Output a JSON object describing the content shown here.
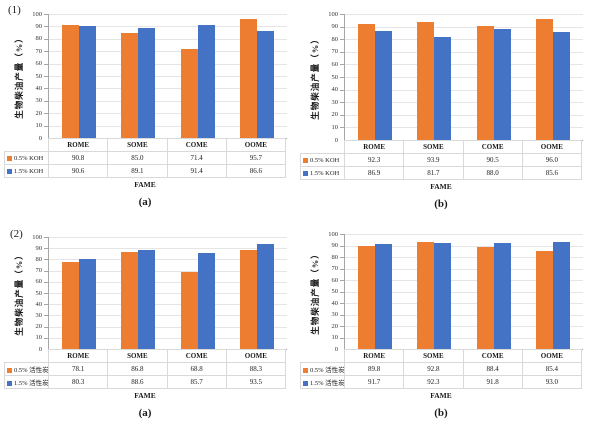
{
  "figure": {
    "colors": {
      "orange": "#ED7D31",
      "blue": "#4472C4",
      "gridline": "#E5E5E5",
      "axis": "#A6A6A6",
      "table_border": "#D9D9D9",
      "text": "#1a1a1a"
    }
  },
  "chart_data": [
    {
      "type": "bar",
      "panel_label": "(1)",
      "caption": "(a)",
      "ylabel": "生物柴油产量（%）",
      "xlabel": "FAME",
      "ylim": [
        0,
        100
      ],
      "ytick_step": 10,
      "grid": true,
      "legend_position": "table-left",
      "categories": [
        "ROME",
        "SOME",
        "COME",
        "OOME"
      ],
      "series": [
        {
          "name": "0.5% KOH",
          "color": "#ED7D31",
          "values": [
            90.8,
            85.0,
            71.4,
            95.7
          ]
        },
        {
          "name": "1.5% KOH",
          "color": "#4472C4",
          "values": [
            90.6,
            89.1,
            91.4,
            86.6
          ]
        }
      ]
    },
    {
      "type": "bar",
      "panel_label": "",
      "caption": "(b)",
      "ylabel": "生物柴油产量（%）",
      "xlabel": "FAME",
      "ylim": [
        0,
        100
      ],
      "ytick_step": 10,
      "grid": true,
      "legend_position": "table-left",
      "categories": [
        "ROME",
        "SOME",
        "COME",
        "OOME"
      ],
      "series": [
        {
          "name": "0.5% KOH",
          "color": "#ED7D31",
          "values": [
            92.3,
            93.9,
            90.5,
            96.0
          ]
        },
        {
          "name": "1.5% KOH",
          "color": "#4472C4",
          "values": [
            86.9,
            81.7,
            88.0,
            85.6
          ]
        }
      ]
    },
    {
      "type": "bar",
      "panel_label": "(2)",
      "caption": "(a)",
      "ylabel": "生物柴油产量（%）",
      "xlabel": "FAME",
      "ylim": [
        0,
        100
      ],
      "ytick_step": 10,
      "grid": true,
      "legend_position": "table-left",
      "categories": [
        "ROME",
        "SOME",
        "COME",
        "OOME"
      ],
      "series": [
        {
          "name": "0.5% 活性炭",
          "color": "#ED7D31",
          "values": [
            78.1,
            86.8,
            68.8,
            88.3
          ]
        },
        {
          "name": "1.5% 活性炭",
          "color": "#4472C4",
          "values": [
            80.3,
            88.6,
            85.7,
            93.5
          ]
        }
      ]
    },
    {
      "type": "bar",
      "panel_label": "",
      "caption": "(b)",
      "ylabel": "生物柴油产量（%）",
      "xlabel": "FAME",
      "ylim": [
        0,
        100
      ],
      "ytick_step": 10,
      "grid": true,
      "legend_position": "table-left",
      "categories": [
        "ROME",
        "SOME",
        "COME",
        "OOME"
      ],
      "series": [
        {
          "name": "0.5% 活性炭",
          "color": "#ED7D31",
          "values": [
            89.8,
            92.8,
            88.4,
            85.4
          ]
        },
        {
          "name": "1.5% 活性炭",
          "color": "#4472C4",
          "values": [
            91.7,
            92.3,
            91.8,
            93.0
          ]
        }
      ]
    }
  ]
}
